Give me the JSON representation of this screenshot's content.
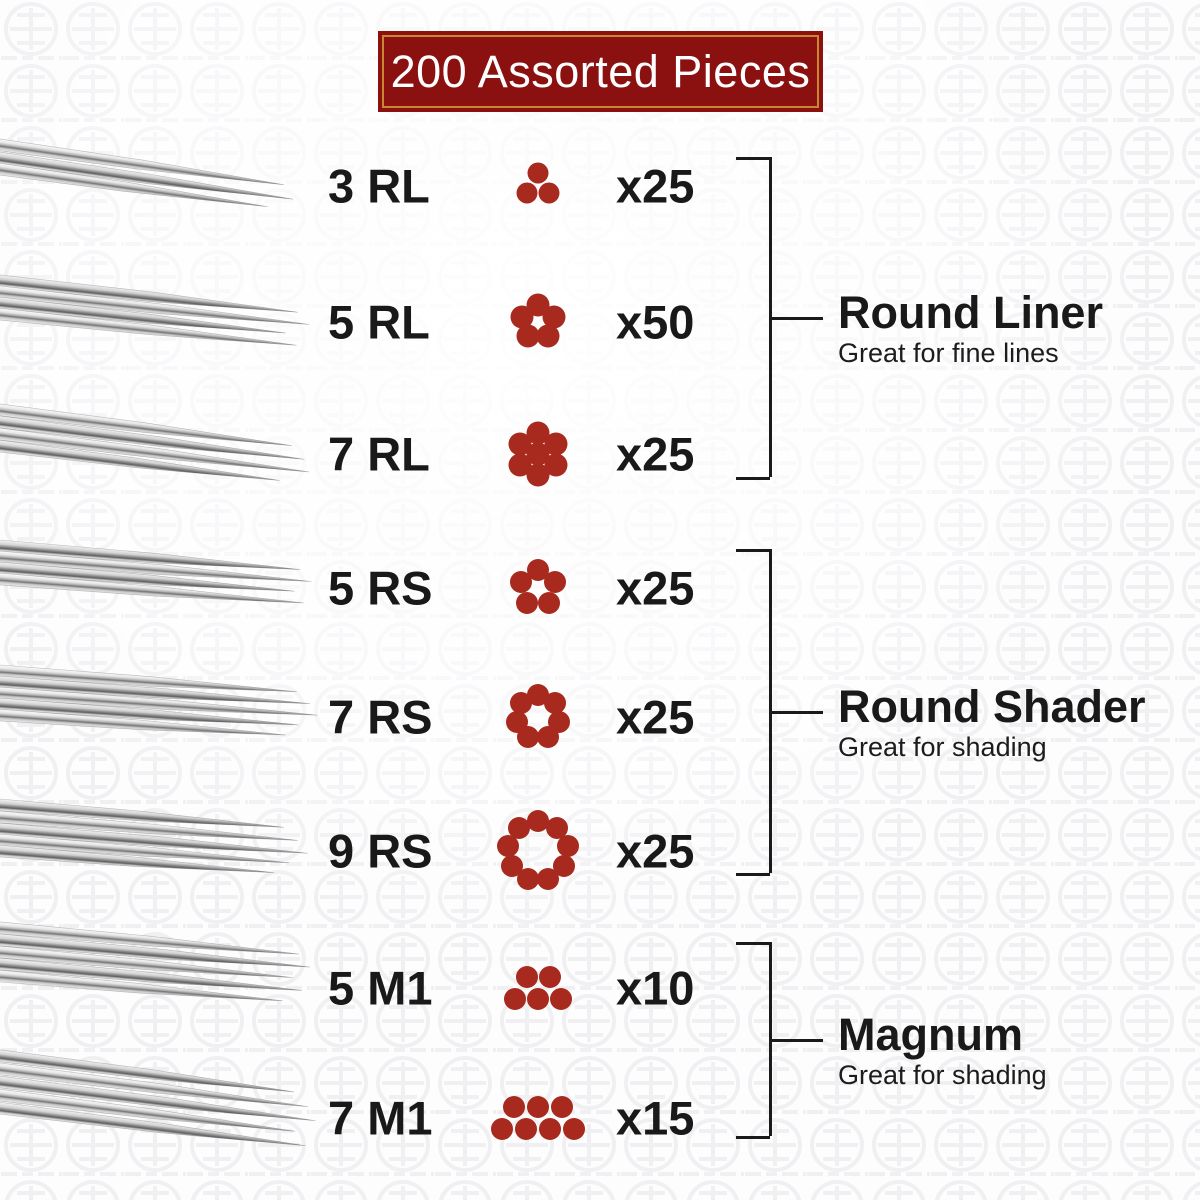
{
  "banner": {
    "label": "200 Assorted Pieces"
  },
  "colors": {
    "banner_bg": "#8b1111",
    "banner_border": "#c9882f",
    "dot": "#a82a1e",
    "text": "#191919"
  },
  "rows": [
    {
      "label": "3 RL",
      "count": "x25",
      "needle_pattern": {
        "shape": "ring",
        "dots": 3,
        "center_dot": false,
        "ring_radius": 13,
        "dot_size": 21
      }
    },
    {
      "label": "5 RL",
      "count": "x50",
      "needle_pattern": {
        "shape": "ring",
        "dots": 5,
        "center_dot": false,
        "ring_radius": 17,
        "dot_size": 23
      }
    },
    {
      "label": "7 RL",
      "count": "x25",
      "needle_pattern": {
        "shape": "ring",
        "dots": 6,
        "center_dot": true,
        "ring_radius": 21,
        "dot_size": 23
      }
    },
    {
      "label": "5 RS",
      "count": "x25",
      "needle_pattern": {
        "shape": "ring",
        "dots": 5,
        "center_dot": false,
        "ring_radius": 18,
        "dot_size": 22
      }
    },
    {
      "label": "7 RS",
      "count": "x25",
      "needle_pattern": {
        "shape": "ring",
        "dots": 7,
        "center_dot": false,
        "ring_radius": 22,
        "dot_size": 22
      }
    },
    {
      "label": "9 RS",
      "count": "x25",
      "needle_pattern": {
        "shape": "ring",
        "dots": 9,
        "center_dot": false,
        "ring_radius": 30,
        "dot_size": 22
      }
    },
    {
      "label": "5 M1",
      "count": "x10",
      "needle_pattern": {
        "shape": "rows",
        "rows": [
          2,
          3
        ],
        "spacing": 23,
        "row_gap": 22,
        "dot_size": 22
      }
    },
    {
      "label": "7 M1",
      "count": "x15",
      "needle_pattern": {
        "shape": "rows",
        "rows": [
          3,
          4
        ],
        "spacing": 24,
        "row_gap": 22,
        "dot_size": 22
      }
    }
  ],
  "groups": [
    {
      "title": "Round Liner",
      "subtitle": "Great for fine lines",
      "members": [
        "3 RL",
        "5 RL",
        "7 RL"
      ]
    },
    {
      "title": "Round Shader",
      "subtitle": "Great for shading",
      "members": [
        "5 RS",
        "7 RS",
        "9 RS"
      ]
    },
    {
      "title": "Magnum",
      "subtitle": "Great for shading",
      "members": [
        "5 M1",
        "7 M1"
      ]
    }
  ]
}
